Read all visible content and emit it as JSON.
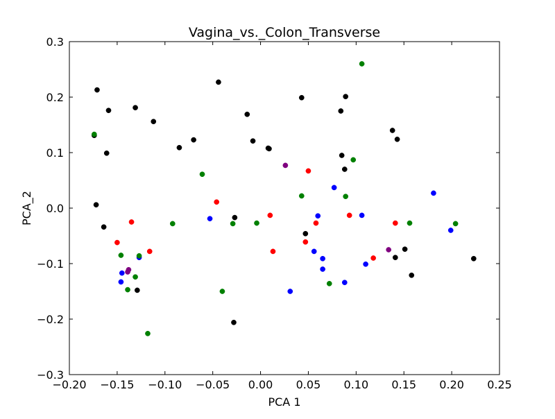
{
  "chart_data": {
    "type": "scatter",
    "title": "Vagina_vs._Colon_Transverse",
    "xlabel": "PCA 1",
    "ylabel": "PCA_2",
    "xlim": [
      -0.2,
      0.25
    ],
    "ylim": [
      -0.3,
      0.3
    ],
    "xticks": [
      -0.2,
      -0.15,
      -0.1,
      -0.05,
      0.0,
      0.05,
      0.1,
      0.15,
      0.2,
      0.25
    ],
    "xtick_labels": [
      "−0.20",
      "−0.15",
      "−0.10",
      "−0.05",
      "0.00",
      "0.05",
      "0.10",
      "0.15",
      "0.20",
      "0.25"
    ],
    "yticks": [
      -0.3,
      -0.2,
      -0.1,
      0.0,
      0.1,
      0.2,
      0.3
    ],
    "ytick_labels": [
      "−0.3",
      "−0.2",
      "−0.1",
      "0.0",
      "0.1",
      "0.2",
      "0.3"
    ],
    "grid": false,
    "series": [
      {
        "color": "#000000",
        "points": [
          [
            -0.171,
            0.213
          ],
          [
            -0.159,
            0.176
          ],
          [
            -0.131,
            0.181
          ],
          [
            -0.112,
            0.156
          ],
          [
            -0.174,
            0.131
          ],
          [
            -0.161,
            0.099
          ],
          [
            -0.085,
            0.109
          ],
          [
            -0.07,
            0.123
          ],
          [
            -0.044,
            0.227
          ],
          [
            -0.014,
            0.169
          ],
          [
            -0.008,
            0.121
          ],
          [
            0.008,
            0.108
          ],
          [
            0.009,
            0.107
          ],
          [
            0.043,
            0.199
          ],
          [
            0.089,
            0.201
          ],
          [
            0.084,
            0.175
          ],
          [
            0.138,
            0.14
          ],
          [
            0.143,
            0.124
          ],
          [
            0.085,
            0.095
          ],
          [
            0.088,
            0.07
          ],
          [
            -0.172,
            0.006
          ],
          [
            -0.164,
            -0.034
          ],
          [
            -0.027,
            -0.017
          ],
          [
            0.047,
            -0.046
          ],
          [
            0.151,
            -0.074
          ],
          [
            0.141,
            -0.089
          ],
          [
            0.158,
            -0.121
          ],
          [
            0.223,
            -0.091
          ],
          [
            -0.129,
            -0.148
          ],
          [
            -0.028,
            -0.206
          ]
        ]
      },
      {
        "color": "#0000ff",
        "points": [
          [
            -0.053,
            -0.019
          ],
          [
            0.06,
            -0.014
          ],
          [
            0.106,
            -0.013
          ],
          [
            0.077,
            0.037
          ],
          [
            0.181,
            0.027
          ],
          [
            0.199,
            -0.04
          ],
          [
            0.056,
            -0.078
          ],
          [
            0.065,
            -0.091
          ],
          [
            0.065,
            -0.11
          ],
          [
            0.11,
            -0.101
          ],
          [
            -0.127,
            -0.089
          ],
          [
            -0.145,
            -0.117
          ],
          [
            -0.146,
            -0.133
          ],
          [
            0.088,
            -0.134
          ],
          [
            0.031,
            -0.15
          ]
        ]
      },
      {
        "color": "#008000",
        "points": [
          [
            -0.174,
            0.133
          ],
          [
            0.106,
            0.26
          ],
          [
            0.097,
            0.087
          ],
          [
            -0.061,
            0.061
          ],
          [
            0.043,
            0.022
          ],
          [
            0.089,
            0.021
          ],
          [
            -0.092,
            -0.028
          ],
          [
            -0.029,
            -0.028
          ],
          [
            -0.004,
            -0.027
          ],
          [
            0.156,
            -0.027
          ],
          [
            0.204,
            -0.028
          ],
          [
            -0.146,
            -0.085
          ],
          [
            -0.127,
            -0.086
          ],
          [
            -0.131,
            -0.124
          ],
          [
            -0.139,
            -0.147
          ],
          [
            -0.04,
            -0.15
          ],
          [
            0.072,
            -0.136
          ],
          [
            -0.118,
            -0.226
          ]
        ]
      },
      {
        "color": "#ff0000",
        "points": [
          [
            0.05,
            0.067
          ],
          [
            -0.046,
            0.011
          ],
          [
            0.01,
            -0.013
          ],
          [
            0.093,
            -0.013
          ],
          [
            -0.135,
            -0.025
          ],
          [
            0.058,
            -0.027
          ],
          [
            0.141,
            -0.027
          ],
          [
            -0.15,
            -0.062
          ],
          [
            0.047,
            -0.061
          ],
          [
            -0.116,
            -0.078
          ],
          [
            0.013,
            -0.078
          ],
          [
            0.118,
            -0.09
          ]
        ]
      },
      {
        "color": "#800080",
        "points": [
          [
            0.026,
            0.077
          ],
          [
            0.134,
            -0.075
          ],
          [
            -0.138,
            -0.111
          ],
          [
            -0.139,
            -0.115
          ]
        ]
      }
    ]
  }
}
